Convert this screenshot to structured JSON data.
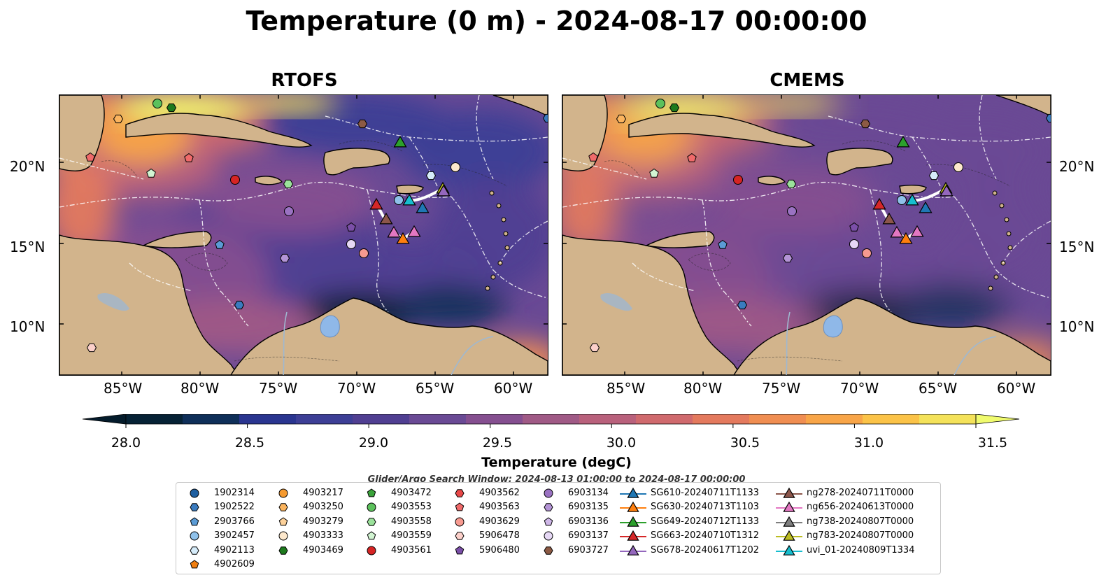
{
  "title": "Temperature (0 m) - 2024-08-17 00:00:00",
  "panels": [
    {
      "title": "RTOFS"
    },
    {
      "title": "CMEMS"
    }
  ],
  "axes": {
    "lat_labels": [
      "20°N",
      "15°N",
      "10°N"
    ],
    "lon_labels": [
      "85°W",
      "80°W",
      "75°W",
      "70°W",
      "65°W",
      "60°W"
    ]
  },
  "colorbar": {
    "label": "Temperature (degC)",
    "ticks": [
      "28.0",
      "28.5",
      "29.0",
      "29.5",
      "30.0",
      "30.5",
      "31.0",
      "31.5"
    ],
    "min": 28.0,
    "max": 31.5,
    "colors": [
      "#062235",
      "#0f2f59",
      "#2a3590",
      "#3d3f96",
      "#503f92",
      "#6a4a95",
      "#854f90",
      "#a05a86",
      "#b9617c",
      "#d06a6e",
      "#e47a5e",
      "#f08e52",
      "#f8a548",
      "#fbc348",
      "#f4e25a"
    ],
    "extend_min_color": "#041b2b",
    "extend_max_color": "#f0fb6e"
  },
  "search_window": "Glider/Argo Search Window: 2024-08-13 01:00:00 to 2024-08-17 00:00:00",
  "legend": {
    "argo": [
      {
        "id": "1902314",
        "marker": "circle",
        "color": "#1f5fa0"
      },
      {
        "id": "1902522",
        "marker": "hexagon",
        "color": "#3a7bbf"
      },
      {
        "id": "2903766",
        "marker": "pentagon",
        "color": "#5b9bd5"
      },
      {
        "id": "3902457",
        "marker": "circle",
        "color": "#8fc1ea"
      },
      {
        "id": "4902113",
        "marker": "hexagon",
        "color": "#d6ecfa"
      },
      {
        "id": "4902609",
        "marker": "pentagon",
        "color": "#f07e10"
      },
      {
        "id": "4903217",
        "marker": "circle",
        "color": "#f59a30"
      },
      {
        "id": "4903250",
        "marker": "hexagon",
        "color": "#fbb45e"
      },
      {
        "id": "4903279",
        "marker": "pentagon",
        "color": "#fcd19a"
      },
      {
        "id": "4903333",
        "marker": "circle",
        "color": "#fde8cc"
      },
      {
        "id": "4903469",
        "marker": "hexagon",
        "color": "#1d7a1d"
      },
      {
        "id": "4903472",
        "marker": "pentagon",
        "color": "#3aa33a"
      },
      {
        "id": "4903553",
        "marker": "circle",
        "color": "#5cc15c"
      },
      {
        "id": "4903558",
        "marker": "hexagon",
        "color": "#9be29b"
      },
      {
        "id": "4903559",
        "marker": "pentagon",
        "color": "#d2f5d2"
      },
      {
        "id": "4903561",
        "marker": "circle",
        "color": "#d62424"
      },
      {
        "id": "4903562",
        "marker": "hexagon",
        "color": "#e84848"
      },
      {
        "id": "4903563",
        "marker": "pentagon",
        "color": "#f06a6a"
      },
      {
        "id": "4903629",
        "marker": "circle",
        "color": "#f79a90"
      },
      {
        "id": "5906478",
        "marker": "hexagon",
        "color": "#fcd0ca"
      },
      {
        "id": "5906480",
        "marker": "pentagon",
        "color": "#7b4fa8"
      },
      {
        "id": "6903134",
        "marker": "circle",
        "color": "#9a72c2"
      },
      {
        "id": "6903135",
        "marker": "hexagon",
        "color": "#b494d6"
      },
      {
        "id": "6903136",
        "marker": "pentagon",
        "color": "#cfb7e8"
      },
      {
        "id": "6903137",
        "marker": "circle",
        "color": "#e6d8f5"
      },
      {
        "id": "6903727",
        "marker": "hexagon",
        "color": "#8c5a44"
      }
    ],
    "gliders": [
      {
        "id": "SG610-20240711T1133",
        "color": "#1f77b4"
      },
      {
        "id": "SG630-20240713T1103",
        "color": "#ff7f0e"
      },
      {
        "id": "SG649-20240712T1133",
        "color": "#2ca02c"
      },
      {
        "id": "SG663-20240710T1312",
        "color": "#d62728"
      },
      {
        "id": "SG678-20240617T1202",
        "color": "#9467bd"
      },
      {
        "id": "ng278-20240711T0000",
        "color": "#8c564b"
      },
      {
        "id": "ng656-20240613T0000",
        "color": "#e377c2"
      },
      {
        "id": "ng738-20240807T0000",
        "color": "#7f7f7f"
      },
      {
        "id": "ng783-20240807T0000",
        "color": "#bcbd22"
      },
      {
        "id": "uvi_01-20240809T1334",
        "color": "#17becf"
      }
    ]
  },
  "map_colors": {
    "land": "#d2b48c",
    "lake": "#8fb8e8",
    "river": "#9fb8d0",
    "coast": "#000000"
  }
}
